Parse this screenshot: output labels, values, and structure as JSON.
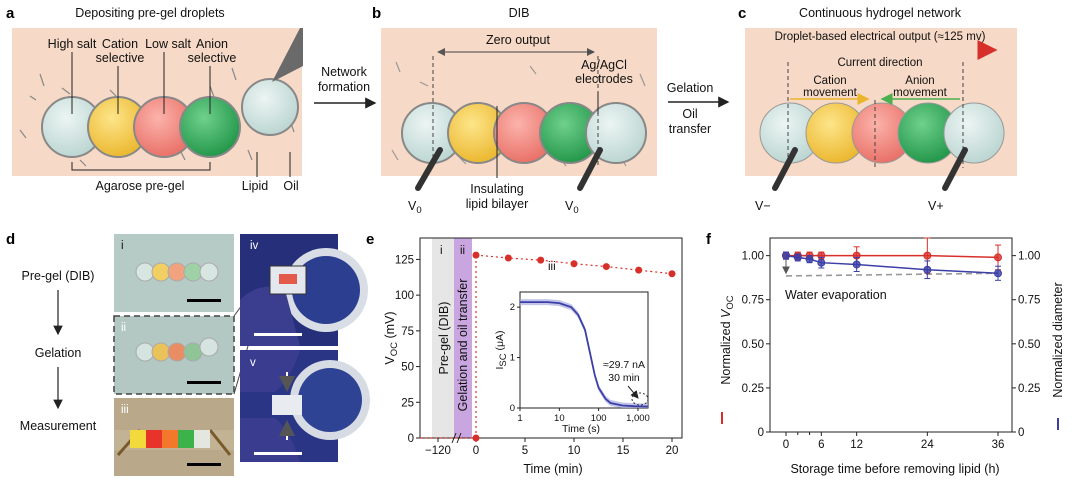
{
  "panel_labels": {
    "a": "a",
    "b": "b",
    "c": "c",
    "d": "d",
    "e": "e",
    "f": "f"
  },
  "panel_a": {
    "title": "Depositing pre-gel droplets",
    "high_salt": "High salt",
    "cation_selective_1": "Cation",
    "cation_selective_2": "selective",
    "low_salt": "Low salt",
    "anion_selective_1": "Anion",
    "anion_selective_2": "selective",
    "agarose": "Agarose pre-gel",
    "lipid": "Lipid",
    "oil": "Oil"
  },
  "arrow_ab": {
    "line1": "Network",
    "line2": "formation"
  },
  "panel_b": {
    "title": "DIB",
    "zero_output": "Zero output",
    "electrodes_1": "Ag/AgCl",
    "electrodes_2": "electrodes",
    "bilayer_1": "Insulating",
    "bilayer_2": "lipid bilayer",
    "v0_left": "V",
    "v0_left_sub": "0",
    "v0_right": "V",
    "v0_right_sub": "0"
  },
  "arrow_bc": {
    "line1": "Gelation",
    "line2": "Oil",
    "line3": "transfer"
  },
  "panel_c": {
    "title": "Continuous hydrogel network",
    "output": "Droplet-based electrical output (≈125 mv)",
    "current": "Current direction",
    "cation_move_1": "Cation",
    "cation_move_2": "movement",
    "anion_move_1": "Anion",
    "anion_move_2": "movement",
    "v_minus": "V−",
    "v_plus": "V+"
  },
  "panel_d": {
    "pre_gel": "Pre-gel (DIB)",
    "gelation": "Gelation",
    "measurement": "Measurement",
    "i": "i",
    "ii": "ii",
    "iii": "iii",
    "iv": "iv",
    "v": "v"
  },
  "panel_e": {
    "ylabel_main": "V",
    "ylabel_sub": "OC",
    "ylabel_unit": " (mV)",
    "xlabel": "Time (min)",
    "region_i": "i",
    "region_ii": "ii",
    "region_iii": "iii",
    "pregel_text": "Pre-gel (DIB)",
    "gelation_text": "Gelation and oil transfer",
    "yticks": [
      "0",
      "25",
      "50",
      "75",
      "100",
      "125"
    ],
    "xticks": [
      "−120",
      "0",
      "5",
      "10",
      "15",
      "20"
    ],
    "inset": {
      "ylabel_main": "I",
      "ylabel_sub": "SC",
      "ylabel_unit": " (μA)",
      "xlabel": "Time (s)",
      "yticks": [
        "0",
        "1",
        "2"
      ],
      "xticks": [
        "1",
        "10",
        "100",
        "1,000"
      ],
      "annotation_1": "≈29.7 nA",
      "annotation_2": "30 min"
    }
  },
  "panel_f": {
    "xlabel": "Storage time before removing lipid (h)",
    "ylabel_left_prefix": "Normalized ",
    "ylabel_left_main": "V",
    "ylabel_left_sub": "OC",
    "ylabel_right": "Normalized diameter",
    "annotation": "Water evaporation",
    "yticks_left": [
      "0",
      "0.25",
      "0.50",
      "0.75",
      "1.00"
    ],
    "yticks_right": [
      "0",
      "0.25",
      "0.50",
      "0.75",
      "1.00"
    ],
    "xticks": [
      "0",
      "6",
      "12",
      "24",
      "36"
    ]
  },
  "colors": {
    "red": "#d7302a",
    "blue": "#3b3fa6",
    "purple_band": "#c9a6df",
    "oil": "#f6d9c6",
    "droplet_clear": "#cfe3e0",
    "droplet_yellow": "#f5c842",
    "droplet_pink": "#f08a82",
    "droplet_green": "#2fae5a"
  },
  "chart_data": [
    {
      "type": "scatter",
      "panel": "e",
      "xlabel": "Time (min)",
      "ylabel": "VOC (mV)",
      "ylim": [
        0,
        140
      ],
      "x": [
        0,
        3.3,
        6.6,
        10,
        13.3,
        16.6,
        20
      ],
      "values": [
        128,
        126,
        124.5,
        122,
        120,
        117.5,
        115
      ],
      "pre_gel_value": 0
    },
    {
      "type": "line",
      "panel": "e-inset",
      "xlabel": "Time (s)",
      "ylabel": "ISC (μA)",
      "xscale": "log",
      "xlim": [
        1,
        1800
      ],
      "ylim": [
        0,
        2.3
      ],
      "x": [
        1,
        5,
        10,
        20,
        30,
        45,
        60,
        80,
        100,
        150,
        200,
        400,
        800,
        1800
      ],
      "values": [
        2.1,
        2.1,
        2.08,
        2.0,
        1.85,
        1.55,
        1.1,
        0.65,
        0.4,
        0.18,
        0.1,
        0.05,
        0.035,
        0.03
      ]
    },
    {
      "type": "line",
      "panel": "f",
      "xlabel": "Storage time before removing lipid (h)",
      "ylim": [
        0,
        1.1
      ],
      "x": [
        0,
        2,
        4,
        6,
        12,
        24,
        36
      ],
      "series": [
        {
          "name": "Normalized VOC",
          "values": [
            1.0,
            1.0,
            1.0,
            1.0,
            1.0,
            1.0,
            0.99
          ],
          "errors": [
            0.02,
            0.02,
            0.02,
            0.02,
            0.05,
            0.1,
            0.07
          ]
        },
        {
          "name": "Normalized diameter",
          "values": [
            1.0,
            0.99,
            0.98,
            0.96,
            0.95,
            0.92,
            0.9
          ],
          "errors": [
            0.02,
            0.02,
            0.02,
            0.03,
            0.04,
            0.05,
            0.04
          ]
        }
      ]
    }
  ]
}
